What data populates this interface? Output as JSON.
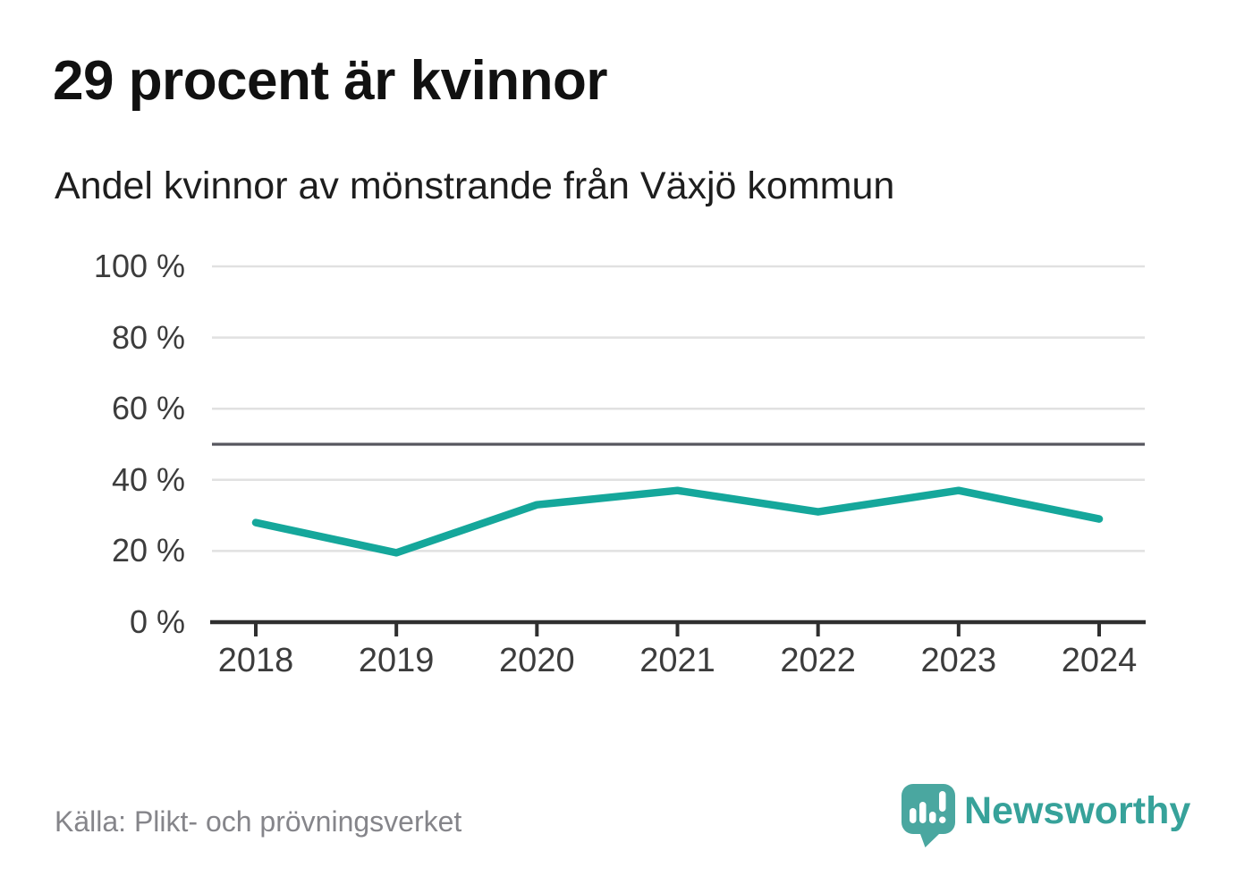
{
  "header": {
    "title": "29 procent är kvinnor",
    "subtitle": "Andel kvinnor av mönstrande från Växjö kommun"
  },
  "footer": {
    "source": "Källa: Plikt- och prövningsverket",
    "brand": "Newsworthy"
  },
  "colors": {
    "line": "#15a79b",
    "grid": "#e1e1e1",
    "reference_line": "#56565e",
    "axis": "#2f2f2f",
    "tick_label": "#3c3c3c",
    "source_text": "#85858a",
    "logo_bubble": "#4aa7a0",
    "wordmark": "#37a29a"
  },
  "chart_data": {
    "type": "line",
    "title": "29 procent är kvinnor",
    "subtitle": "Andel kvinnor av mönstrande från Växjö kommun",
    "categories": [
      "2018",
      "2019",
      "2020",
      "2021",
      "2022",
      "2023",
      "2024"
    ],
    "series": [
      {
        "name": "Andel kvinnor av mönstrande",
        "values": [
          28,
          19.5,
          33,
          37,
          31,
          37,
          29
        ]
      }
    ],
    "xlabel": "",
    "ylabel": "",
    "ylim": [
      0,
      100
    ],
    "yticks": [
      0,
      20,
      40,
      60,
      80,
      100
    ],
    "ytick_suffix": " %",
    "reference_line": 50,
    "grid": true,
    "legend_position": "none",
    "source": "Källa: Plikt- och prövningsverket"
  }
}
